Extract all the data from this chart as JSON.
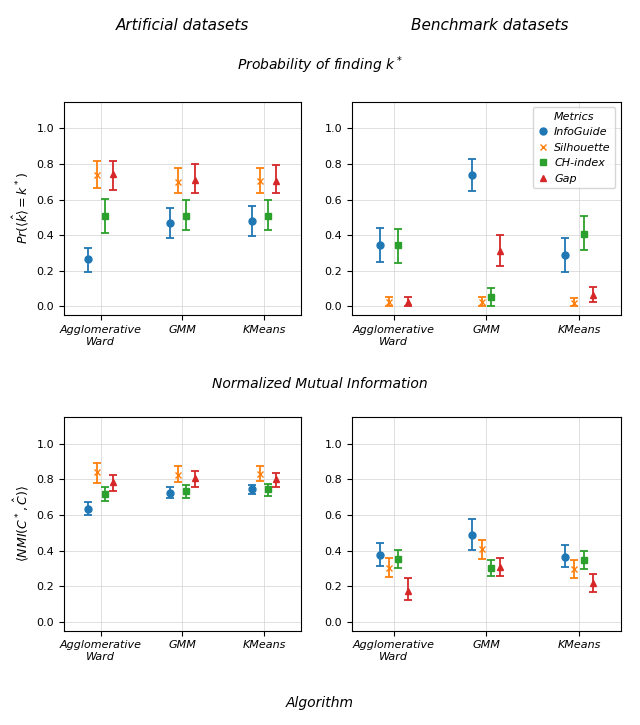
{
  "title_col1": "Artificial datasets",
  "title_col2": "Benchmark datasets",
  "title_row1": "Probability of finding $k^*$",
  "title_row2": "Normalized Mutual Information",
  "xlabel": "Algorithm",
  "ylabel_row1": "$Pr(\\langle\\hat{k}\\rangle = k^*)$",
  "ylabel_row2": "$\\langle NMI(C^*, \\hat{C})\\rangle$",
  "xtick_labels": [
    "Agglomerative\nWard",
    "GMM",
    "KMeans"
  ],
  "legend_title": "Metrics",
  "legend_labels": [
    "InfoGuide",
    "Silhouette",
    "CH-index",
    "Gap"
  ],
  "colors": {
    "InfoGuide": "#1f77b4",
    "Silhouette": "#ff7f0e",
    "CH-index": "#2ca02c",
    "Gap": "#d62728"
  },
  "markers": {
    "InfoGuide": "o",
    "Silhouette": "x",
    "CH-index": "s",
    "Gap": "^"
  },
  "offsets": [
    -0.15,
    -0.05,
    0.05,
    0.15
  ],
  "prob_artificial": {
    "InfoGuide": {
      "vals": [
        0.265,
        0.47,
        0.48
      ],
      "lo": [
        0.195,
        0.385,
        0.395
      ],
      "hi": [
        0.33,
        0.555,
        0.565
      ]
    },
    "Silhouette": {
      "vals": [
        0.74,
        0.7,
        0.705
      ],
      "lo": [
        0.665,
        0.635,
        0.635
      ],
      "hi": [
        0.815,
        0.775,
        0.775
      ]
    },
    "CH-index": {
      "vals": [
        0.51,
        0.51,
        0.51
      ],
      "lo": [
        0.41,
        0.43,
        0.43
      ],
      "hi": [
        0.605,
        0.6,
        0.6
      ]
    },
    "Gap": {
      "vals": [
        0.745,
        0.71,
        0.705
      ],
      "lo": [
        0.655,
        0.635,
        0.635
      ],
      "hi": [
        0.815,
        0.8,
        0.795
      ]
    }
  },
  "prob_benchmark": {
    "InfoGuide": {
      "vals": [
        0.345,
        0.74,
        0.29
      ],
      "lo": [
        0.25,
        0.65,
        0.195
      ],
      "hi": [
        0.44,
        0.83,
        0.385
      ]
    },
    "Silhouette": {
      "vals": [
        0.025,
        0.025,
        0.02
      ],
      "lo": [
        0.005,
        0.005,
        0.005
      ],
      "hi": [
        0.055,
        0.055,
        0.045
      ]
    },
    "CH-index": {
      "vals": [
        0.345,
        0.055,
        0.405
      ],
      "lo": [
        0.245,
        0.005,
        0.315
      ],
      "hi": [
        0.435,
        0.105,
        0.505
      ]
    },
    "Gap": {
      "vals": [
        0.025,
        0.31,
        0.065
      ],
      "lo": [
        0.005,
        0.225,
        0.025
      ],
      "hi": [
        0.055,
        0.4,
        0.11
      ]
    }
  },
  "nmi_artificial": {
    "InfoGuide": {
      "vals": [
        0.635,
        0.725,
        0.745
      ],
      "lo": [
        0.6,
        0.695,
        0.715
      ],
      "hi": [
        0.67,
        0.755,
        0.77
      ]
    },
    "Silhouette": {
      "vals": [
        0.84,
        0.825,
        0.83
      ],
      "lo": [
        0.78,
        0.785,
        0.79
      ],
      "hi": [
        0.89,
        0.875,
        0.875
      ]
    },
    "CH-index": {
      "vals": [
        0.72,
        0.735,
        0.745
      ],
      "lo": [
        0.68,
        0.695,
        0.705
      ],
      "hi": [
        0.755,
        0.765,
        0.775
      ]
    },
    "Gap": {
      "vals": [
        0.785,
        0.805,
        0.8
      ],
      "lo": [
        0.735,
        0.755,
        0.755
      ],
      "hi": [
        0.825,
        0.845,
        0.835
      ]
    }
  },
  "nmi_benchmark": {
    "InfoGuide": {
      "vals": [
        0.375,
        0.49,
        0.365
      ],
      "lo": [
        0.315,
        0.405,
        0.31
      ],
      "hi": [
        0.44,
        0.575,
        0.43
      ]
    },
    "Silhouette": {
      "vals": [
        0.3,
        0.41,
        0.295
      ],
      "lo": [
        0.25,
        0.35,
        0.245
      ],
      "hi": [
        0.36,
        0.46,
        0.345
      ]
    },
    "CH-index": {
      "vals": [
        0.35,
        0.3,
        0.345
      ],
      "lo": [
        0.3,
        0.255,
        0.295
      ],
      "hi": [
        0.405,
        0.345,
        0.4
      ]
    },
    "Gap": {
      "vals": [
        0.175,
        0.305,
        0.22
      ],
      "lo": [
        0.12,
        0.255,
        0.165
      ],
      "hi": [
        0.245,
        0.36,
        0.27
      ]
    }
  }
}
